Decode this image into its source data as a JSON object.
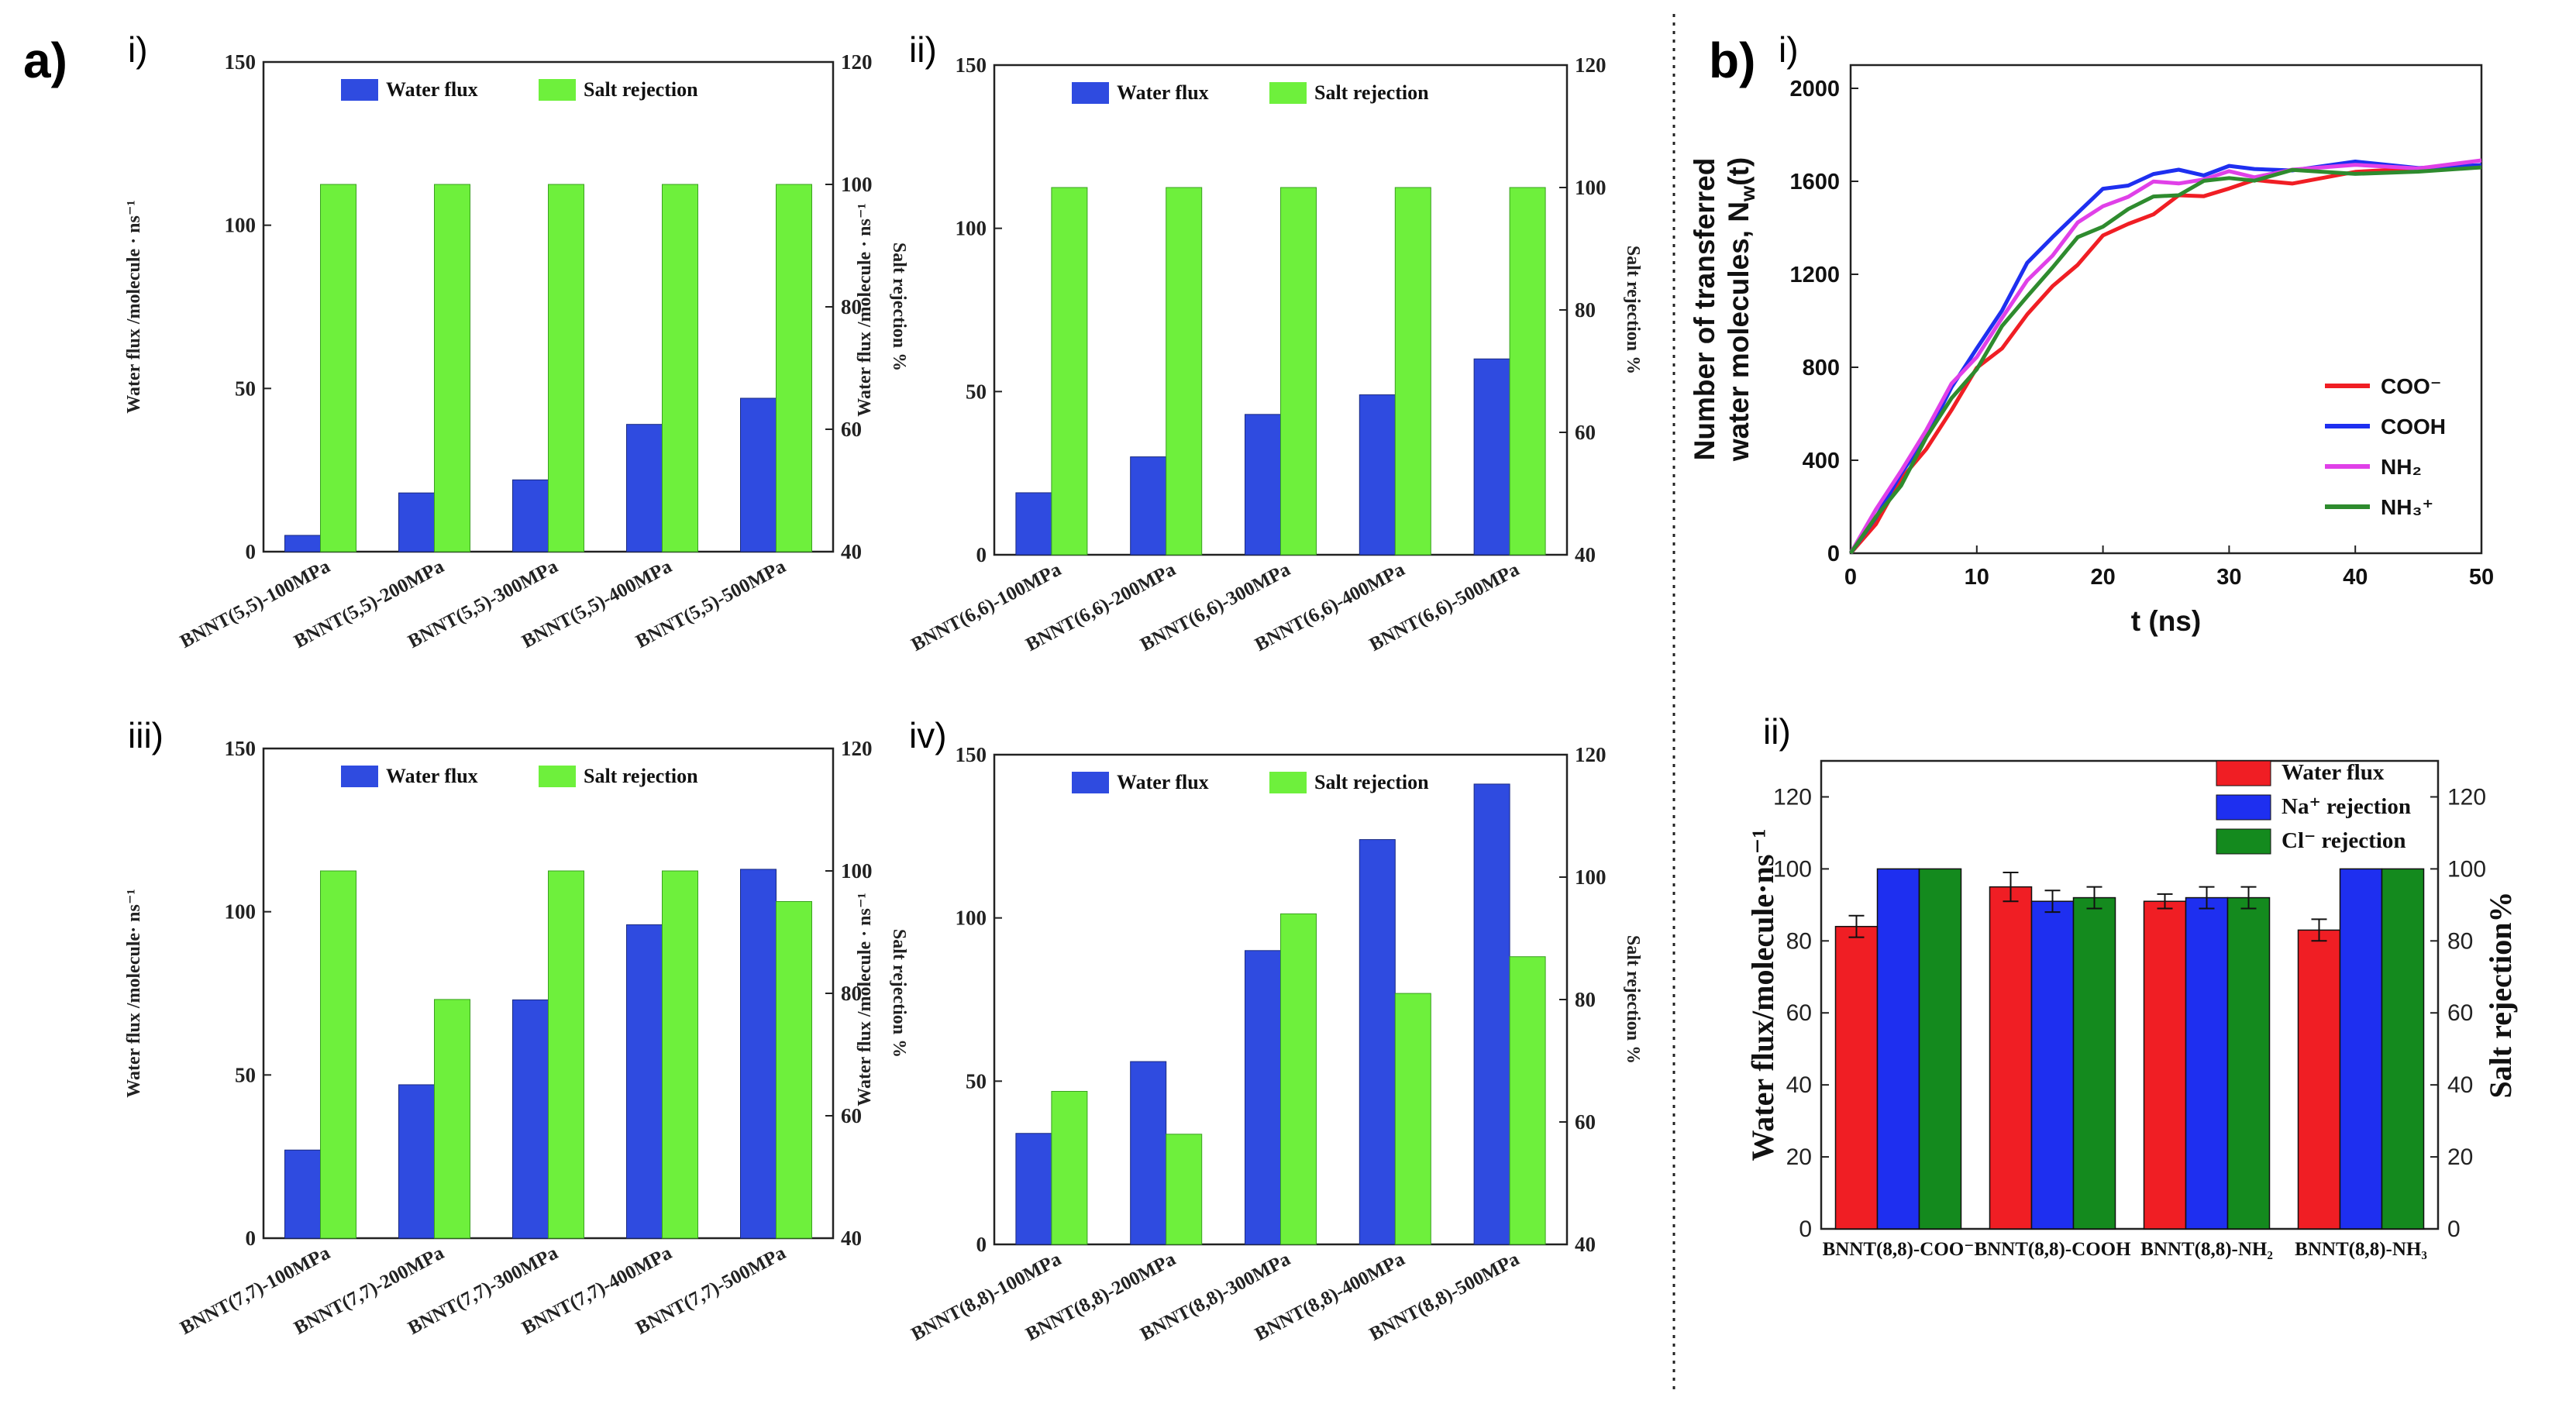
{
  "figure": {
    "label_a": "a)",
    "label_b": "b)",
    "colors": {
      "blue": "#2f4be0",
      "green": "#6ef03c",
      "red": "#f01e24",
      "nblue": "#1e2ff0",
      "dgreen": "#148a1e",
      "magenta": "#e040e8",
      "lgreen": "#2e8b2e",
      "black": "#111111"
    }
  },
  "chart_data": [
    {
      "id": "a-i",
      "type": "bar",
      "panel": "a",
      "sublabel": "i)",
      "categories": [
        "BNNT(5,5)-100MPa",
        "BNNT(5,5)-200MPa",
        "BNNT(5,5)-300MPa",
        "BNNT(5,5)-400MPa",
        "BNNT(5,5)-500MPa"
      ],
      "series": [
        {
          "name": "Water flux",
          "axis": "left",
          "values": [
            5,
            18,
            22,
            39,
            47
          ]
        },
        {
          "name": "Salt rejection",
          "axis": "right",
          "values": [
            100,
            100,
            100,
            100,
            100
          ]
        }
      ],
      "ylabel": "Water flux /molecule · ns⁻¹",
      "y2label": "Salt rejection %",
      "ylim": [
        0,
        150
      ],
      "yticks": [
        0,
        50,
        100,
        150
      ],
      "y2lim": [
        40,
        120
      ],
      "y2ticks": [
        40,
        60,
        80,
        100,
        120
      ]
    },
    {
      "id": "a-ii",
      "type": "bar",
      "panel": "a",
      "sublabel": "ii)",
      "categories": [
        "BNNT(6,6)-100MPa",
        "BNNT(6,6)-200MPa",
        "BNNT(6,6)-300MPa",
        "BNNT(6,6)-400MPa",
        "BNNT(6,6)-500MPa"
      ],
      "series": [
        {
          "name": "Water flux",
          "axis": "left",
          "values": [
            19,
            30,
            43,
            49,
            60
          ]
        },
        {
          "name": "Salt rejection",
          "axis": "right",
          "values": [
            100,
            100,
            100,
            100,
            100
          ]
        }
      ],
      "ylabel": "Water flux /molecule · ns⁻¹",
      "y2label": "Salt rejection %",
      "ylim": [
        0,
        150
      ],
      "yticks": [
        0,
        50,
        100,
        150
      ],
      "y2lim": [
        40,
        120
      ],
      "y2ticks": [
        40,
        60,
        80,
        100,
        120
      ]
    },
    {
      "id": "a-iii",
      "type": "bar",
      "panel": "a",
      "sublabel": "iii)",
      "categories": [
        "BNNT(7,7)-100MPa",
        "BNNT(7,7)-200MPa",
        "BNNT(7,7)-300MPa",
        "BNNT(7,7)-400MPa",
        "BNNT(7,7)-500MPa"
      ],
      "series": [
        {
          "name": "Water flux",
          "axis": "left",
          "values": [
            27,
            47,
            73,
            96,
            113
          ]
        },
        {
          "name": "Salt rejection",
          "axis": "right",
          "values": [
            100,
            79,
            100,
            100,
            95
          ]
        }
      ],
      "ylabel": "Water flux /molecule· ns⁻¹",
      "y2label": "Salt rejection %",
      "ylim": [
        0,
        150
      ],
      "yticks": [
        0,
        50,
        100,
        150
      ],
      "y2lim": [
        40,
        120
      ],
      "y2ticks": [
        40,
        60,
        80,
        100,
        120
      ]
    },
    {
      "id": "a-iv",
      "type": "bar",
      "panel": "a",
      "sublabel": "iv)",
      "categories": [
        "BNNT(8,8)-100MPa",
        "BNNT(8,8)-200MPa",
        "BNNT(8,8)-300MPa",
        "BNNT(8,8)-400MPa",
        "BNNT(8,8)-500MPa"
      ],
      "series": [
        {
          "name": "Water flux",
          "axis": "left",
          "values": [
            34,
            56,
            90,
            124,
            141
          ]
        },
        {
          "name": "Salt rejection",
          "axis": "right",
          "values": [
            65,
            58,
            94,
            81,
            87
          ]
        }
      ],
      "ylabel": "Water flux /molecule · ns⁻¹",
      "y2label": "Salt rejection %",
      "ylim": [
        0,
        150
      ],
      "yticks": [
        0,
        50,
        100,
        150
      ],
      "y2lim": [
        40,
        120
      ],
      "y2ticks": [
        40,
        60,
        80,
        100,
        120
      ]
    },
    {
      "id": "b-i",
      "type": "line",
      "panel": "b",
      "sublabel": "i)",
      "xlabel": "t (ns)",
      "ylabel_1": "Number of transferred",
      "ylabel_2": "water molecules, N",
      "ylabel_sub": "w",
      "ylabel_tail": "(t)",
      "xlim": [
        0,
        50
      ],
      "xticks": [
        0,
        10,
        20,
        30,
        40,
        50
      ],
      "ylim": [
        0,
        2100
      ],
      "yticks": [
        0,
        400,
        800,
        1200,
        1600,
        2000
      ],
      "series": [
        {
          "name": "COO⁻",
          "color": "#f01e24",
          "x": [
            0,
            2,
            4,
            6,
            8,
            10,
            12,
            14,
            16,
            18,
            20,
            22,
            24,
            26,
            28,
            30,
            32,
            35,
            40,
            45,
            50
          ],
          "y": [
            0,
            140,
            300,
            460,
            620,
            780,
            900,
            1020,
            1140,
            1260,
            1350,
            1420,
            1470,
            1520,
            1550,
            1570,
            1590,
            1610,
            1630,
            1650,
            1660
          ]
        },
        {
          "name": "COOH",
          "color": "#1e2ff0",
          "x": [
            0,
            2,
            4,
            6,
            8,
            10,
            12,
            14,
            16,
            18,
            20,
            22,
            24,
            26,
            28,
            30,
            32,
            35,
            40,
            45,
            50
          ],
          "y": [
            0,
            150,
            330,
            520,
            700,
            880,
            1060,
            1230,
            1370,
            1470,
            1550,
            1600,
            1625,
            1640,
            1645,
            1650,
            1655,
            1660,
            1665,
            1670,
            1670
          ]
        },
        {
          "name": "NH₂",
          "color": "#e040e8",
          "x": [
            0,
            2,
            4,
            6,
            8,
            10,
            12,
            14,
            16,
            18,
            20,
            22,
            24,
            26,
            28,
            30,
            32,
            35,
            40,
            45,
            50
          ],
          "y": [
            0,
            170,
            360,
            540,
            710,
            860,
            1010,
            1160,
            1300,
            1410,
            1490,
            1550,
            1580,
            1600,
            1615,
            1625,
            1635,
            1645,
            1660,
            1675,
            1690
          ]
        },
        {
          "name": "NH₃⁺",
          "color": "#2e8b2e",
          "x": [
            0,
            2,
            4,
            6,
            8,
            10,
            12,
            14,
            16,
            18,
            20,
            22,
            24,
            26,
            28,
            30,
            32,
            35,
            40,
            45,
            50
          ],
          "y": [
            0,
            140,
            310,
            490,
            660,
            810,
            960,
            1110,
            1240,
            1340,
            1420,
            1480,
            1520,
            1560,
            1590,
            1610,
            1620,
            1630,
            1640,
            1650,
            1660
          ]
        }
      ],
      "legend": [
        "COO⁻",
        "COOH",
        "NH₂",
        "NH₃⁺"
      ]
    },
    {
      "id": "b-ii",
      "type": "bar",
      "panel": "b",
      "sublabel": "ii)",
      "categories": [
        "BNNT(8,8)-COO⁻",
        "BNNT(8,8)-COOH",
        "BNNT(8,8)-NH₂",
        "BNNT(8,8)-NH₃"
      ],
      "series": [
        {
          "name": "Water flux",
          "color": "#f01e24",
          "values": [
            84,
            95,
            91,
            83
          ],
          "errors": [
            3,
            4,
            2,
            3
          ]
        },
        {
          "name": "Na⁺ rejection",
          "color": "#1e2ff0",
          "values": [
            100,
            91,
            92,
            100
          ],
          "errors": [
            0,
            3,
            3,
            0
          ]
        },
        {
          "name": "Cl⁻ rejection",
          "color": "#148a1e",
          "values": [
            100,
            92,
            92,
            100
          ],
          "errors": [
            0,
            3,
            3,
            0
          ]
        }
      ],
      "ylabel": "Water flux/molecule·ns⁻¹",
      "y2label": "Salt rejection%",
      "ylim": [
        0,
        130
      ],
      "yticks": [
        0,
        20,
        40,
        60,
        80,
        100,
        120
      ],
      "y2lim": [
        0,
        130
      ],
      "y2ticks": [
        0,
        20,
        40,
        60,
        80,
        100,
        120
      ]
    }
  ]
}
